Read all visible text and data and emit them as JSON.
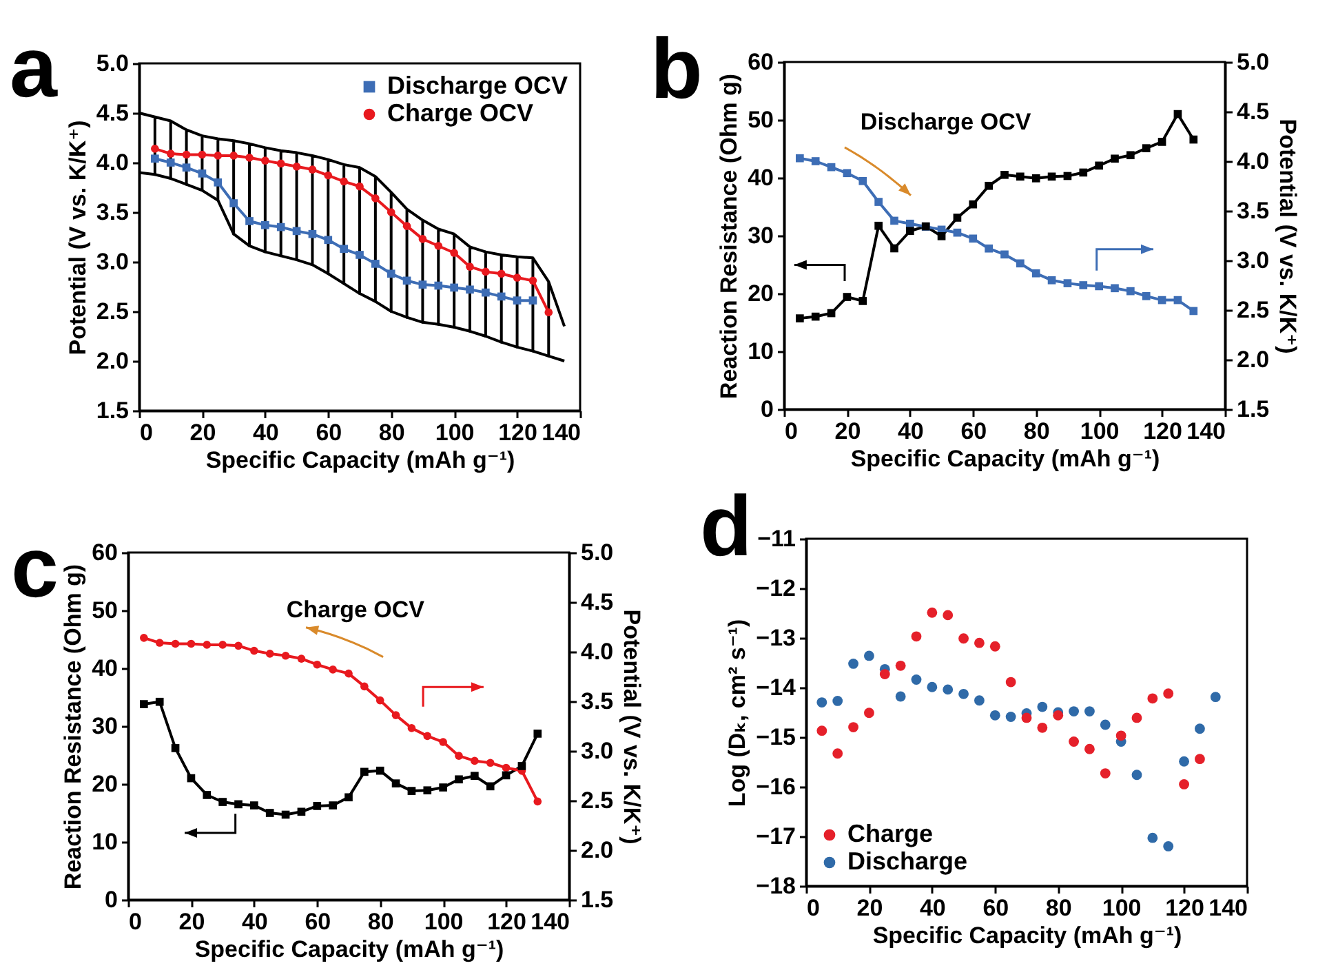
{
  "chart_data": [
    {
      "type": "line",
      "xlabel": "Specific Capacity (mAh g⁻¹)",
      "ylabel": "Potential (V vs. K/K⁺)",
      "annotations": [
        "a"
      ],
      "legend": "top right",
      "xlim": [
        0,
        140
      ],
      "xticks": [
        0,
        20,
        40,
        60,
        80,
        100,
        120,
        140
      ],
      "ylim": [
        1.5,
        5
      ],
      "yticks": [
        1.5,
        {
          "value": 2,
          "label": "2.0"
        },
        2.5,
        {
          "value": 3,
          "label": "3.0"
        },
        3.5,
        {
          "value": 4,
          "label": "4.0"
        },
        4.5,
        {
          "value": 5,
          "label": "5.0"
        }
      ],
      "x": [
        5,
        10,
        15,
        20,
        25,
        30,
        35,
        40,
        45,
        50,
        55,
        60,
        65,
        70,
        75,
        80,
        85,
        90,
        95,
        100,
        105,
        110,
        115,
        120,
        125,
        130
      ],
      "series": [
        {
          "color": "#000000",
          "marker": "none",
          "x": [
            0,
            5,
            5,
            5,
            10,
            10,
            10,
            15,
            15,
            15,
            20,
            20,
            20,
            25,
            25,
            25,
            30,
            30,
            30,
            35,
            35,
            35,
            40,
            40,
            40,
            45,
            45,
            45,
            50,
            50,
            50,
            55,
            55,
            55,
            60,
            60,
            60,
            65,
            65,
            65,
            70,
            70,
            70,
            75,
            75,
            75,
            80,
            80,
            80,
            85,
            85,
            85,
            90,
            90,
            90,
            95,
            95,
            95,
            100,
            100,
            100,
            105,
            105,
            105,
            110,
            110,
            110,
            115,
            115,
            115,
            120,
            120,
            120,
            125,
            125,
            125,
            130,
            130,
            130,
            135
          ],
          "values": [
            4.5,
            4.46,
            3.88,
            4.46,
            4.42,
            3.84,
            4.42,
            4.33,
            3.78,
            4.33,
            4.27,
            3.72,
            4.27,
            4.24,
            3.62,
            4.24,
            4.22,
            3.28,
            4.22,
            4.19,
            3.16,
            4.19,
            4.15,
            3.1,
            4.15,
            4.12,
            3.06,
            4.12,
            4.1,
            3.02,
            4.1,
            4.07,
            2.97,
            4.07,
            4.03,
            2.88,
            4.03,
            3.98,
            2.78,
            3.98,
            3.95,
            2.68,
            3.95,
            3.86,
            2.6,
            3.86,
            3.7,
            2.5,
            3.7,
            3.53,
            2.44,
            3.53,
            3.42,
            2.39,
            3.42,
            3.33,
            2.37,
            3.33,
            3.28,
            2.34,
            3.28,
            3.15,
            2.3,
            3.15,
            3.1,
            2.25,
            3.1,
            3.07,
            2.19,
            3.07,
            3.05,
            2.14,
            3.05,
            3.04,
            2.1,
            3.04,
            2.8,
            2.05,
            2.8,
            2.35
          ]
        },
        {
          "color": "#000000",
          "marker": "none",
          "x": [
            0,
            5,
            10,
            15,
            20,
            25,
            30,
            35,
            40,
            45,
            50,
            55,
            60,
            65,
            70,
            75,
            80,
            85,
            90,
            95,
            100,
            105,
            110,
            115,
            120,
            125,
            130,
            135
          ],
          "values": [
            3.9,
            3.88,
            3.84,
            3.78,
            3.72,
            3.62,
            3.28,
            3.16,
            3.1,
            3.06,
            3.02,
            2.97,
            2.88,
            2.78,
            2.68,
            2.6,
            2.5,
            2.44,
            2.39,
            2.37,
            2.34,
            2.3,
            2.25,
            2.19,
            2.14,
            2.1,
            2.05,
            2.0
          ]
        },
        {
          "name": "Discharge OCV",
          "color": "#3d6db5",
          "marker": "square",
          "values": [
            4.04,
            4.0,
            3.95,
            3.89,
            3.8,
            3.59,
            3.41,
            3.37,
            3.35,
            3.31,
            3.28,
            3.22,
            3.13,
            3.07,
            2.98,
            2.88,
            2.81,
            2.77,
            2.76,
            2.74,
            2.72,
            2.69,
            2.65,
            2.61,
            2.61,
            null
          ]
        },
        {
          "name": "Charge OCV",
          "color": "#e8191e",
          "marker": "circle",
          "values": [
            4.14,
            4.09,
            4.08,
            4.08,
            4.07,
            4.07,
            4.05,
            4.02,
            3.99,
            3.96,
            3.93,
            3.87,
            3.81,
            3.76,
            3.64,
            3.5,
            3.36,
            3.23,
            3.16,
            3.09,
            2.95,
            2.9,
            2.88,
            2.84,
            2.81,
            2.49
          ]
        }
      ]
    },
    {
      "type": "line",
      "xlabel": "Specific Capacity (mAh g⁻¹)",
      "ylabel": "Reaction Resistance (Ohm g)",
      "y2label": "Potential (V vs. K/K⁺)",
      "annotations": [
        "b",
        "Discharge OCV"
      ],
      "xlim": [
        0,
        140
      ],
      "xticks": [
        0,
        20,
        40,
        60,
        80,
        100,
        120,
        140
      ],
      "ylim": [
        0,
        60
      ],
      "yticks": [
        0,
        10,
        20,
        30,
        40,
        50,
        60
      ],
      "y2lim": [
        1.5,
        5
      ],
      "y2ticks": [
        1.5,
        {
          "value": 2,
          "label": "2.0"
        },
        2.5,
        {
          "value": 3,
          "label": "3.0"
        },
        3.5,
        {
          "value": 4,
          "label": "4.0"
        },
        4.5,
        {
          "value": 5,
          "label": "5.0"
        }
      ],
      "x": [
        5,
        10,
        15,
        20,
        25,
        30,
        35,
        40,
        45,
        50,
        55,
        60,
        65,
        70,
        75,
        80,
        85,
        90,
        95,
        100,
        105,
        110,
        115,
        120,
        125,
        130
      ],
      "series": [
        {
          "color": "#000000",
          "marker": "square",
          "values": [
            15.7,
            16.0,
            16.6,
            19.4,
            18.7,
            31.7,
            27.8,
            30.8,
            31.6,
            29.9,
            33.1,
            35.4,
            38.6,
            40.5,
            40.2,
            39.9,
            40.2,
            40.3,
            40.9,
            42.1,
            43.3,
            43.9,
            45.1,
            46.2,
            51.0,
            46.6
          ]
        },
        {
          "color": "#3d6db5",
          "marker": "square",
          "axis": "y2",
          "values": [
            4.03,
            4.0,
            3.94,
            3.88,
            3.8,
            3.59,
            3.4,
            3.37,
            3.34,
            3.31,
            3.28,
            3.22,
            3.12,
            3.06,
            2.97,
            2.87,
            2.8,
            2.77,
            2.75,
            2.74,
            2.72,
            2.69,
            2.64,
            2.6,
            2.6,
            2.49
          ]
        }
      ]
    },
    {
      "type": "line",
      "xlabel": "Specific Capacity (mAh g⁻¹)",
      "ylabel": "Reaction Resistance (Ohm g)",
      "y2label": "Potential (V vs. K/K⁺)",
      "annotations": [
        "c",
        "Charge OCV"
      ],
      "xlim": [
        0,
        140
      ],
      "xticks": [
        0,
        20,
        40,
        60,
        80,
        100,
        120,
        140
      ],
      "ylim": [
        0,
        60
      ],
      "yticks": [
        0,
        10,
        20,
        30,
        40,
        50,
        60
      ],
      "y2lim": [
        1.5,
        5
      ],
      "y2ticks": [
        1.5,
        {
          "value": 2,
          "label": "2.0"
        },
        2.5,
        {
          "value": 3,
          "label": "3.0"
        },
        3.5,
        {
          "value": 4,
          "label": "4.0"
        },
        4.5,
        {
          "value": 5,
          "label": "5.0"
        }
      ],
      "x": [
        5,
        10,
        15,
        20,
        25,
        30,
        35,
        40,
        45,
        50,
        55,
        60,
        65,
        70,
        75,
        80,
        85,
        90,
        95,
        100,
        105,
        110,
        115,
        120,
        125,
        130
      ],
      "series": [
        {
          "color": "#000000",
          "marker": "square",
          "values": [
            33.8,
            34.2,
            26.2,
            21.0,
            18.1,
            16.9,
            16.5,
            16.3,
            15.0,
            14.7,
            15.2,
            16.2,
            16.3,
            17.7,
            22.1,
            22.3,
            20.1,
            18.8,
            18.9,
            19.4,
            20.8,
            21.4,
            19.6,
            21.5,
            23.1,
            28.7
          ]
        },
        {
          "color": "#e8191e",
          "marker": "circle",
          "axis": "y2",
          "values": [
            4.14,
            4.09,
            4.08,
            4.08,
            4.07,
            4.07,
            4.06,
            4.01,
            3.98,
            3.96,
            3.93,
            3.87,
            3.82,
            3.78,
            3.65,
            3.51,
            3.36,
            3.23,
            3.15,
            3.09,
            2.95,
            2.9,
            2.88,
            2.83,
            2.8,
            2.49
          ]
        }
      ]
    },
    {
      "type": "scatter",
      "xlabel": "Specific Capacity (mAh g⁻¹)",
      "ylabel": "Log (Dₖ, cm² s⁻¹)",
      "annotations": [
        "d"
      ],
      "legend": "bottom left",
      "marker": "circle",
      "xlim": [
        0,
        140
      ],
      "xticks": [
        0,
        20,
        40,
        60,
        80,
        100,
        120,
        140
      ],
      "ylim": [
        -18,
        -11
      ],
      "yticks": [
        -18,
        -17,
        -16,
        -15,
        -14,
        -13,
        -12,
        -11
      ],
      "x": [
        5,
        10,
        15,
        20,
        25,
        30,
        35,
        40,
        45,
        50,
        55,
        60,
        65,
        70,
        75,
        80,
        85,
        90,
        95,
        100,
        105,
        110,
        115,
        120,
        125,
        130
      ],
      "series": [
        {
          "name": "Charge",
          "color": "#e5202a",
          "values": [
            -14.87,
            -15.33,
            -14.8,
            -14.51,
            -13.73,
            -13.56,
            -12.97,
            -12.49,
            -12.54,
            -13.01,
            -13.1,
            -13.17,
            -13.89,
            -14.61,
            -14.81,
            -14.56,
            -15.09,
            -15.24,
            -15.73,
            -14.97,
            -14.61,
            -14.22,
            -14.12,
            -15.95,
            -15.44,
            null
          ]
        },
        {
          "name": "Discharge",
          "color": "#2f6aa8",
          "values": [
            -14.3,
            -14.27,
            -13.52,
            -13.36,
            -13.63,
            -14.18,
            -13.84,
            -13.99,
            -14.04,
            -14.13,
            -14.26,
            -14.56,
            -14.59,
            -14.52,
            -14.39,
            -14.5,
            -14.48,
            -14.48,
            -14.75,
            -15.09,
            -15.76,
            -17.03,
            -17.2,
            -15.49,
            -14.83,
            -14.19
          ]
        }
      ]
    }
  ]
}
